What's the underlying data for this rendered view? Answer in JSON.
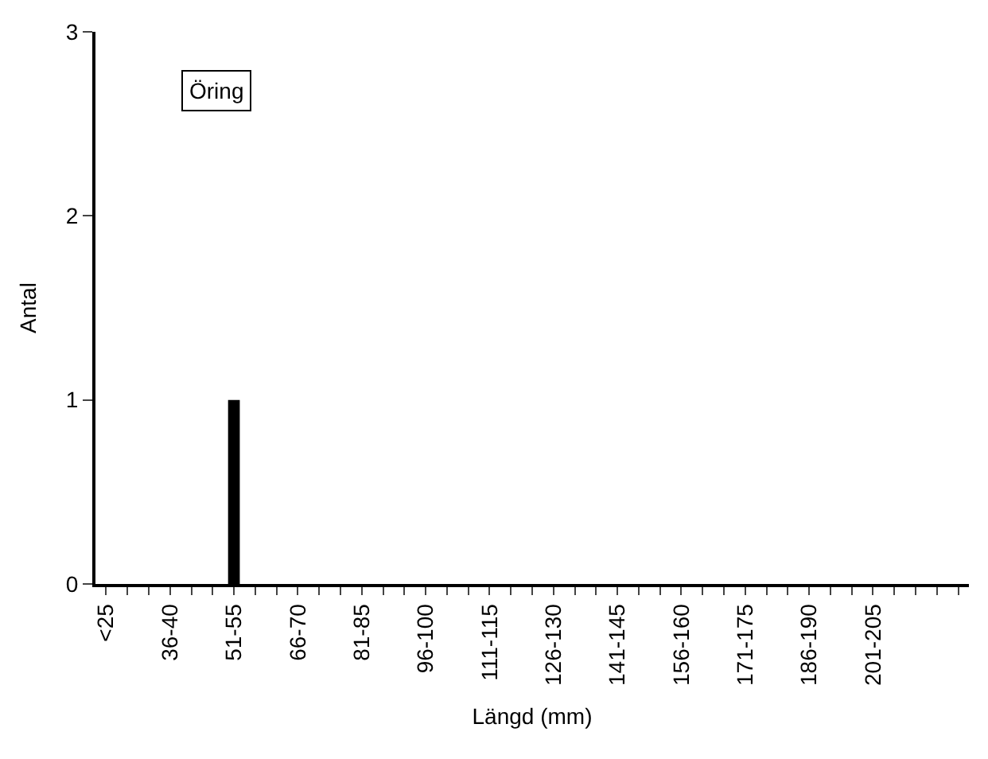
{
  "chart_data": {
    "type": "bar",
    "xlabel": "Längd (mm)",
    "ylabel": "Antal",
    "annotations": [
      "Öring"
    ],
    "categories": [
      "<25",
      null,
      null,
      "36-40",
      null,
      null,
      "51-55",
      null,
      null,
      "66-70",
      null,
      null,
      "81-85",
      null,
      null,
      "96-100",
      null,
      null,
      "111-115",
      null,
      null,
      "126-130",
      null,
      null,
      "141-145",
      null,
      null,
      "156-160",
      null,
      null,
      "171-175",
      null,
      null,
      "186-190",
      null,
      null,
      "201-205",
      null,
      null,
      null,
      null
    ],
    "values": [
      0,
      0,
      0,
      0,
      0,
      0,
      1,
      0,
      0,
      0,
      0,
      0,
      0,
      0,
      0,
      0,
      0,
      0,
      0,
      0,
      0,
      0,
      0,
      0,
      0,
      0,
      0,
      0,
      0,
      0,
      0,
      0,
      0,
      0,
      0,
      0,
      0,
      0,
      0,
      0,
      0
    ],
    "color": "#000000",
    "ylim": [
      0,
      3
    ],
    "yticks": [
      0,
      1,
      2,
      3
    ]
  }
}
